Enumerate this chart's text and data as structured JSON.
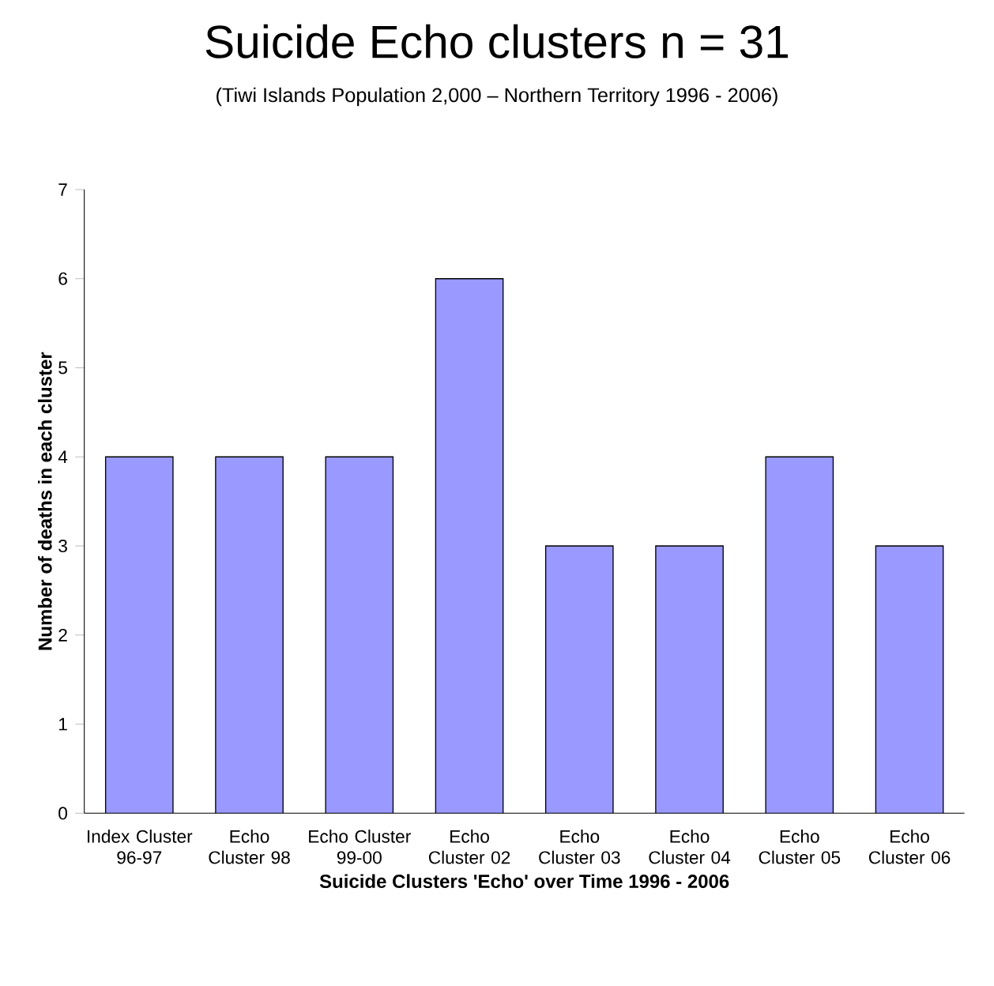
{
  "chart_data": {
    "type": "bar",
    "title": "Suicide Echo clusters n = 31",
    "subtitle": "(Tiwi Islands Population 2,000  – Northern Territory 1996 - 2006)",
    "xlabel": "Suicide Clusters 'Echo' over Time  1996 - 2006",
    "ylabel": "Number of deaths in each cluster",
    "categories": [
      "Index Cluster 96-97",
      "Echo Cluster 98",
      "Echo Cluster 99-00",
      "Echo Cluster 02",
      "Echo Cluster 03",
      "Echo Cluster 04",
      "Echo Cluster 05",
      "Echo Cluster 06"
    ],
    "values": [
      4,
      4,
      4,
      6,
      3,
      3,
      4,
      3
    ],
    "color": "#9999ff",
    "ylim": [
      0,
      7
    ],
    "yticks": [
      0,
      1,
      2,
      3,
      4,
      5,
      6,
      7
    ]
  }
}
